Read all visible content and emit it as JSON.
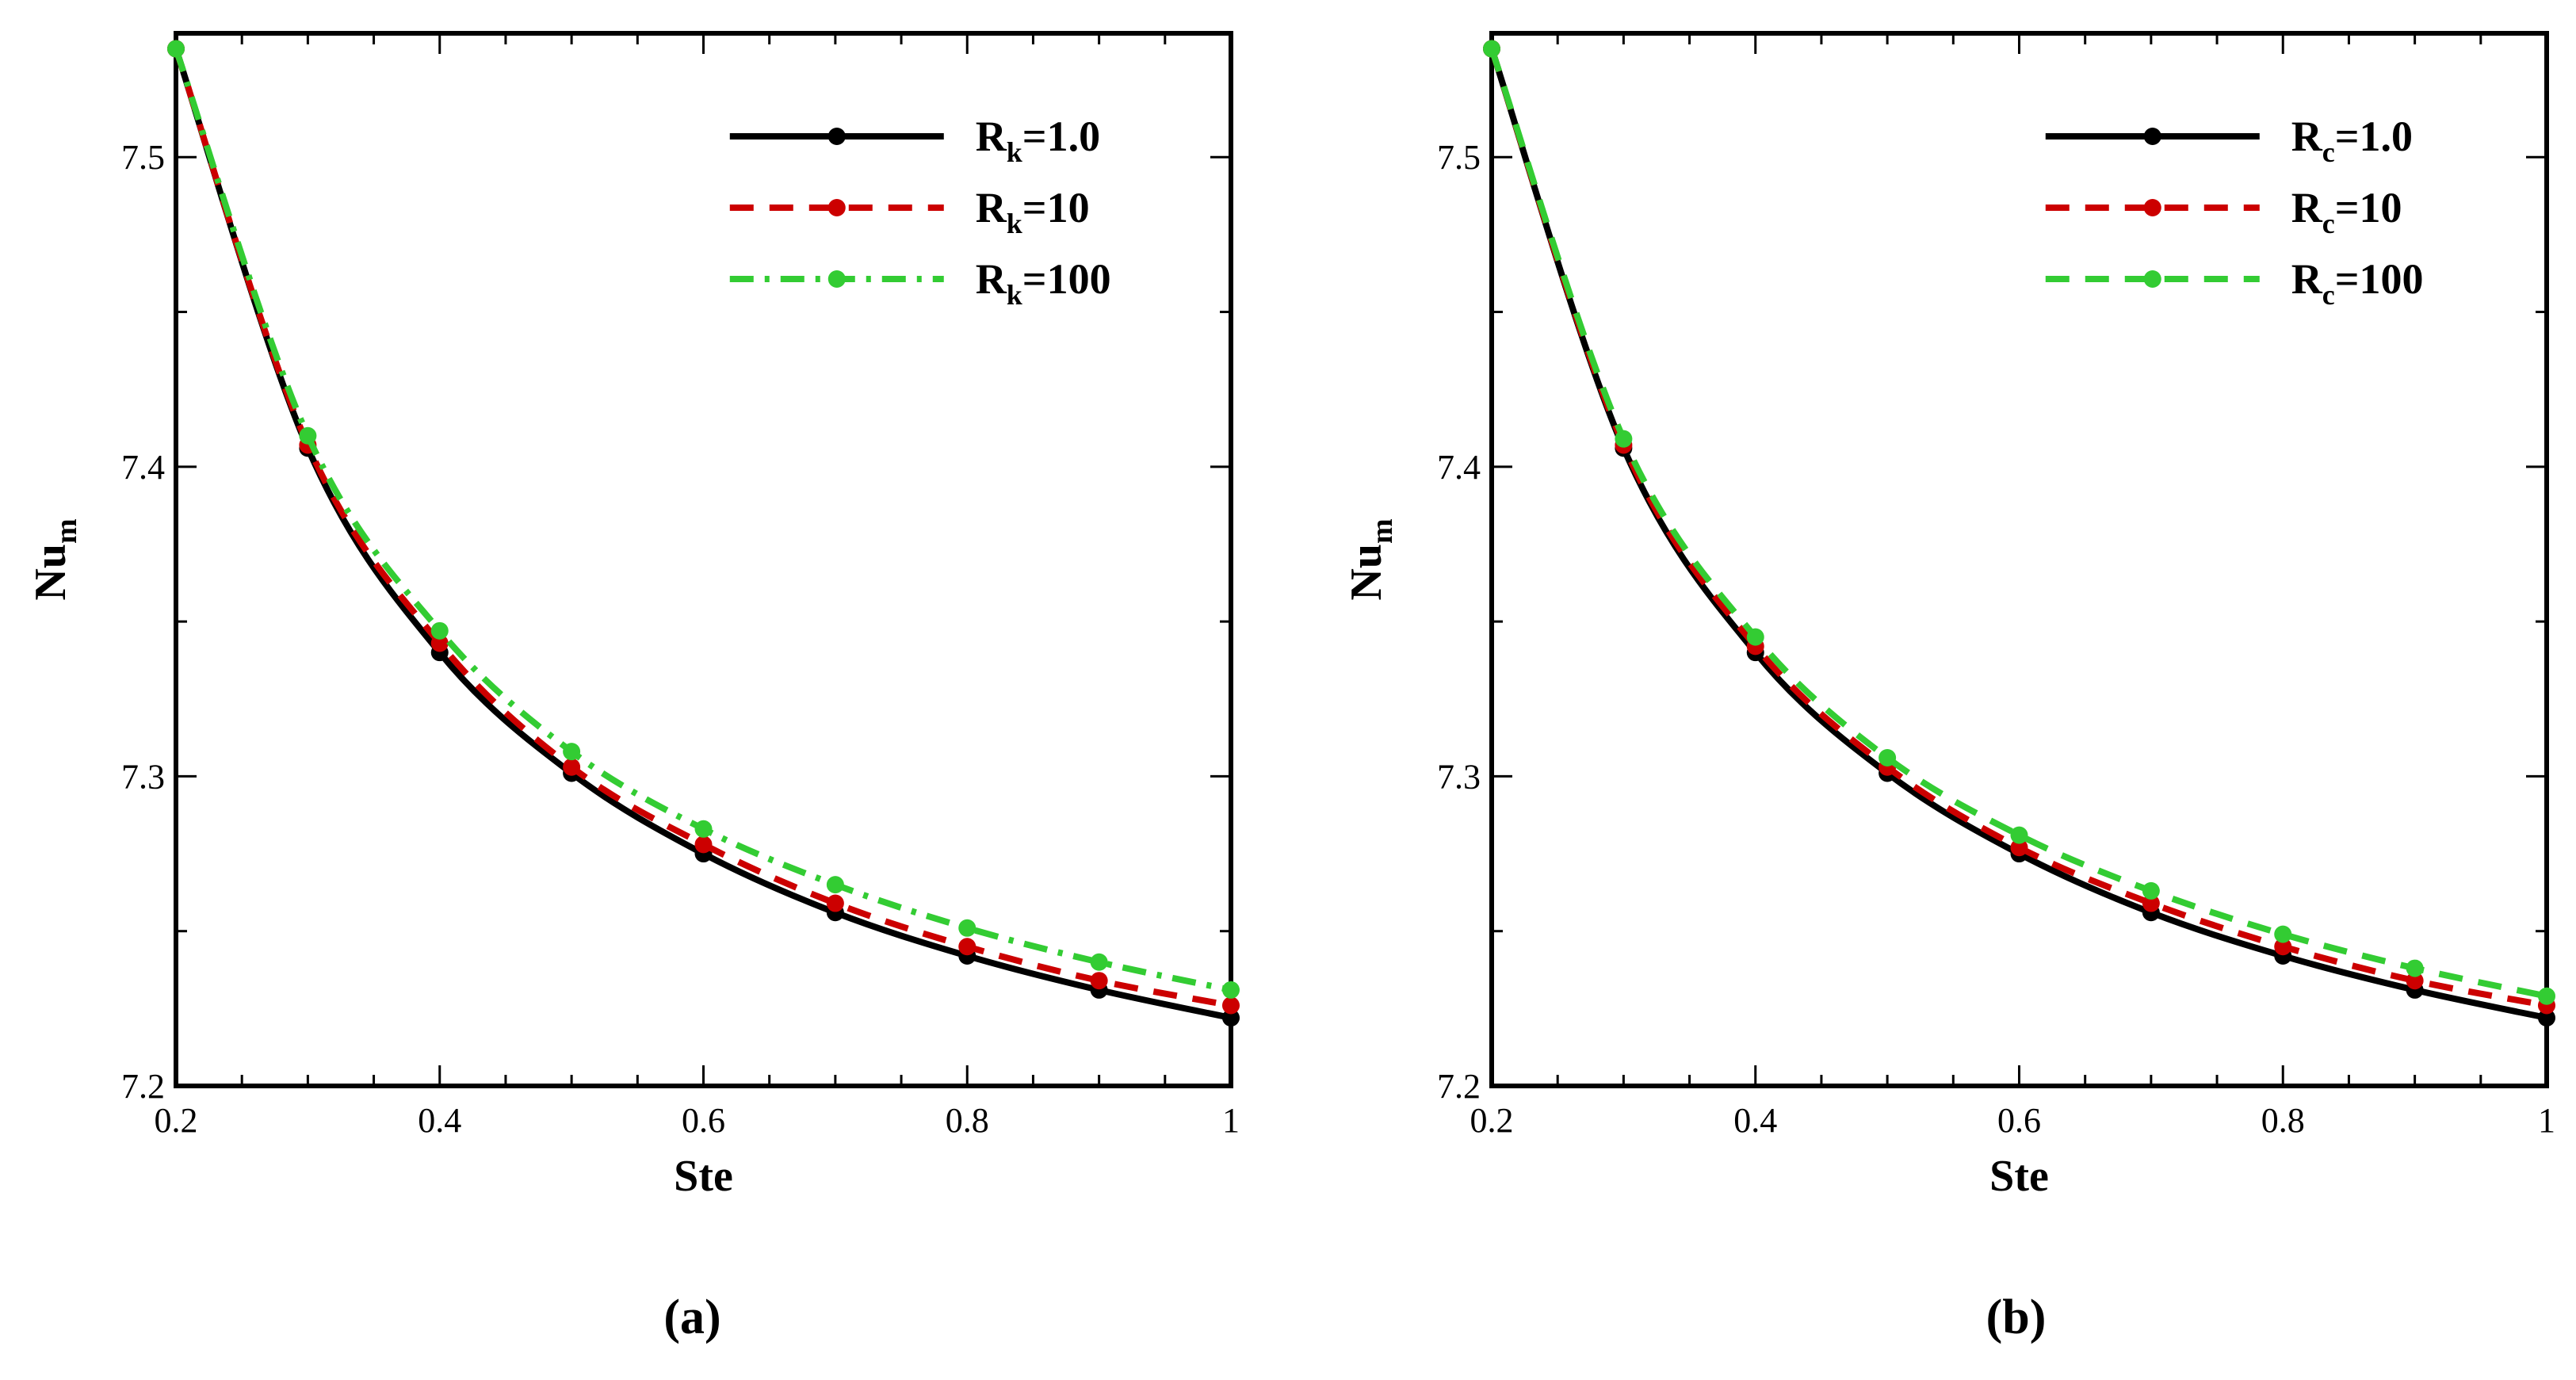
{
  "chart_data": [
    {
      "type": "line",
      "panel_label": "(a)",
      "xlabel": "Ste",
      "ylabel": {
        "base": "Nu",
        "sub": "m"
      },
      "xlim": [
        0.2,
        1.0
      ],
      "ylim": [
        7.2,
        7.54
      ],
      "x_ticks": [
        "0.2",
        "0.4",
        "0.6",
        "0.8",
        "1"
      ],
      "y_ticks": [
        "7.2",
        "7.3",
        "7.4",
        "7.5"
      ],
      "legend_position": "top-right",
      "x": [
        0.2,
        0.3,
        0.4,
        0.5,
        0.6,
        0.7,
        0.8,
        0.9,
        1.0
      ],
      "series": [
        {
          "name": "R_k=1.0",
          "label_base": "R",
          "label_sub": "k",
          "label_rest": "=1.0",
          "color": "#000000",
          "style": "solid",
          "values": [
            7.535,
            7.406,
            7.34,
            7.301,
            7.275,
            7.256,
            7.242,
            7.231,
            7.222
          ]
        },
        {
          "name": "R_k=10",
          "label_base": "R",
          "label_sub": "k",
          "label_rest": "=10",
          "color": "#cc0000",
          "style": "dashed",
          "values": [
            7.535,
            7.407,
            7.343,
            7.303,
            7.278,
            7.259,
            7.245,
            7.234,
            7.226
          ]
        },
        {
          "name": "R_k=100",
          "label_base": "R",
          "label_sub": "k",
          "label_rest": "=100",
          "color": "#33cc33",
          "style": "dashdot",
          "values": [
            7.535,
            7.41,
            7.347,
            7.308,
            7.283,
            7.265,
            7.251,
            7.24,
            7.231
          ]
        }
      ]
    },
    {
      "type": "line",
      "panel_label": "(b)",
      "xlabel": "Ste",
      "ylabel": {
        "base": "Nu",
        "sub": "m"
      },
      "xlim": [
        0.2,
        1.0
      ],
      "ylim": [
        7.2,
        7.54
      ],
      "x_ticks": [
        "0.2",
        "0.4",
        "0.6",
        "0.8",
        "1"
      ],
      "y_ticks": [
        "7.2",
        "7.3",
        "7.4",
        "7.5"
      ],
      "legend_position": "top-right",
      "x": [
        0.2,
        0.3,
        0.4,
        0.5,
        0.6,
        0.7,
        0.8,
        0.9,
        1.0
      ],
      "series": [
        {
          "name": "R_c=1.0",
          "label_base": "R",
          "label_sub": "c",
          "label_rest": "=1.0",
          "color": "#000000",
          "style": "solid",
          "values": [
            7.535,
            7.406,
            7.34,
            7.301,
            7.275,
            7.256,
            7.242,
            7.231,
            7.222
          ]
        },
        {
          "name": "R_c=10",
          "label_base": "R",
          "label_sub": "c",
          "label_rest": "=10",
          "color": "#cc0000",
          "style": "dashed",
          "values": [
            7.535,
            7.407,
            7.342,
            7.303,
            7.277,
            7.259,
            7.245,
            7.234,
            7.226
          ]
        },
        {
          "name": "R_c=100",
          "label_base": "R",
          "label_sub": "c",
          "label_rest": "=100",
          "color": "#33cc33",
          "style": "dashed",
          "values": [
            7.535,
            7.409,
            7.345,
            7.306,
            7.281,
            7.263,
            7.249,
            7.238,
            7.229
          ]
        }
      ]
    }
  ]
}
